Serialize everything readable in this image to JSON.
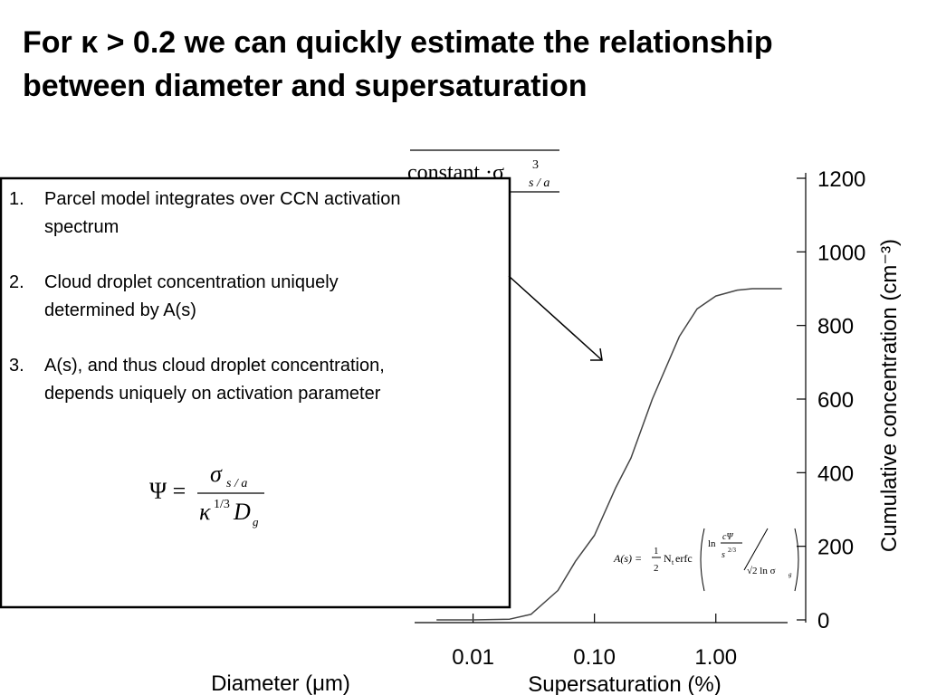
{
  "slide": {
    "title_line1": "For κ > 0.2 we can quickly estimate the relationship",
    "title_line2": "between diameter and supersaturation",
    "list": [
      {
        "num": "1.",
        "lines": [
          "Parcel model integrates over CCN activation",
          "spectrum"
        ]
      },
      {
        "num": "2.",
        "lines": [
          "Cloud droplet concentration uniquely",
          "determined by A(s)"
        ]
      },
      {
        "num": "3.",
        "lines": [
          "A(s), and thus cloud droplet concentration,",
          "depends uniquely on activation parameter"
        ]
      }
    ],
    "top_formula": {
      "text": "constant ·σ",
      "sup": "3",
      "sub": "s / a"
    },
    "psi_formula": {
      "lhs": "Ψ =",
      "num": "σ",
      "num_sub": "s / a",
      "den": "κ",
      "den_sup": "1/3",
      "den2": "D",
      "den2_sub": "g"
    },
    "a_formula": {
      "lhs": "A(s) =",
      "half_num": "1",
      "half_den": "2",
      "n": "N",
      "n_sub": "t",
      "erfc": "erfc",
      "ln": "ln",
      "cpsi": "cΨ",
      "s": "s",
      "s_sup": "2/3",
      "denom": "√2 ln σ",
      "denom_sub": "g"
    },
    "hidden_axis_label": "Diameter (μm)"
  },
  "chart_data": {
    "type": "line",
    "x_label": "Supersaturation (%)",
    "y_label": "Cumulative concentration (cm⁻³)",
    "log_x": true,
    "x": [
      0.005,
      0.01,
      0.02,
      0.03,
      0.05,
      0.07,
      0.1,
      0.15,
      0.2,
      0.3,
      0.5,
      0.7,
      1.0,
      1.5,
      2,
      3.5
    ],
    "values": [
      0,
      0,
      2,
      15,
      80,
      160,
      230,
      360,
      440,
      600,
      770,
      845,
      880,
      896,
      900,
      900
    ],
    "color": "#444444",
    "xlim": [
      0.0033,
      3.9
    ],
    "xticks": [
      0.01,
      {
        "value": 0.1,
        "label": "0.10"
      },
      {
        "value": 1,
        "label": "1.00"
      }
    ],
    "ylim": [
      0,
      1200
    ],
    "yticks": [
      0,
      200,
      400,
      600,
      800,
      1000,
      1200
    ]
  }
}
